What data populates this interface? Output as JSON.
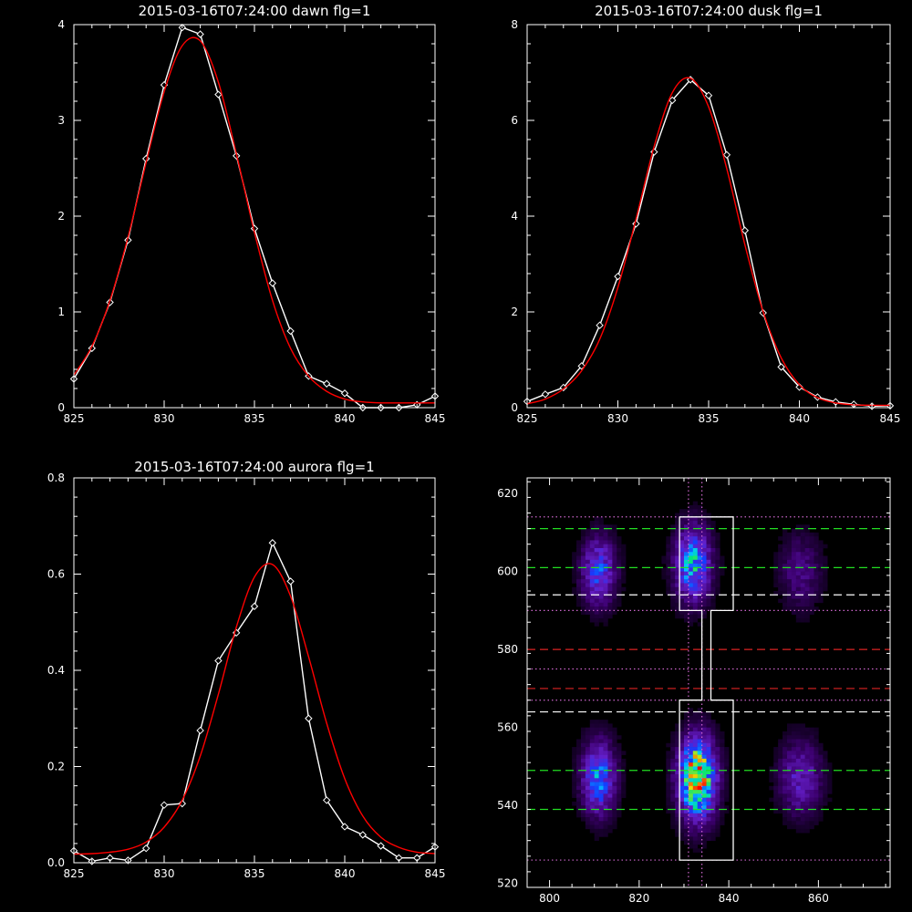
{
  "chart_data": [
    {
      "type": "line",
      "title": "2015-03-16T07:24:00 dawn flg=1",
      "xlim": [
        825,
        845
      ],
      "ylim": [
        0,
        4
      ],
      "xticks": [
        825,
        830,
        835,
        840,
        845
      ],
      "yticks": [
        0,
        1,
        2,
        3,
        4
      ],
      "series": [
        {
          "color": "#ffffff",
          "markers": "diamond",
          "x": [
            825,
            826,
            827,
            828,
            829,
            830,
            831,
            832,
            833,
            834,
            835,
            836,
            837,
            838,
            839,
            840,
            841,
            842,
            843,
            844,
            845
          ],
          "y": [
            0.3,
            0.62,
            1.1,
            1.75,
            2.6,
            3.37,
            3.97,
            3.9,
            3.27,
            2.63,
            1.87,
            1.3,
            0.8,
            0.33,
            0.25,
            0.15,
            0.0,
            0.0,
            0.0,
            0.03,
            0.12
          ]
        },
        {
          "color": "#ff0000",
          "markers": "none",
          "smooth": true,
          "x": [
            825,
            826,
            827,
            828,
            829,
            830,
            831,
            832,
            833,
            834,
            835,
            836,
            837,
            838,
            839,
            840,
            841,
            842,
            843,
            844,
            845
          ],
          "y": [
            0.34,
            0.64,
            1.12,
            1.78,
            2.56,
            3.3,
            3.78,
            3.83,
            3.4,
            2.65,
            1.83,
            1.12,
            0.62,
            0.33,
            0.17,
            0.09,
            0.06,
            0.05,
            0.05,
            0.05,
            0.05
          ]
        }
      ]
    },
    {
      "type": "line",
      "title": "2015-03-16T07:24:00 dusk flg=1",
      "xlim": [
        825,
        845
      ],
      "ylim": [
        0,
        8
      ],
      "xticks": [
        825,
        830,
        835,
        840,
        845
      ],
      "yticks": [
        0,
        2,
        4,
        6,
        8
      ],
      "series": [
        {
          "color": "#ffffff",
          "markers": "diamond",
          "x": [
            825,
            826,
            827,
            828,
            829,
            830,
            831,
            832,
            833,
            834,
            835,
            836,
            837,
            838,
            839,
            840,
            841,
            842,
            843,
            844,
            845
          ],
          "y": [
            0.13,
            0.28,
            0.42,
            0.87,
            1.72,
            2.74,
            3.84,
            5.34,
            6.42,
            6.85,
            6.52,
            5.28,
            3.7,
            1.98,
            0.85,
            0.43,
            0.22,
            0.12,
            0.07,
            0.03,
            0.04
          ]
        },
        {
          "color": "#ff0000",
          "markers": "none",
          "smooth": true,
          "x": [
            825,
            826,
            827,
            828,
            829,
            830,
            831,
            832,
            833,
            834,
            835,
            836,
            837,
            838,
            839,
            840,
            841,
            842,
            843,
            844,
            845
          ],
          "y": [
            0.08,
            0.18,
            0.39,
            0.77,
            1.43,
            2.51,
            3.94,
            5.46,
            6.58,
            6.88,
            6.28,
            4.99,
            3.4,
            2.01,
            1.04,
            0.48,
            0.21,
            0.1,
            0.06,
            0.05,
            0.05
          ]
        }
      ]
    },
    {
      "type": "line",
      "title": "2015-03-16T07:24:00 aurora flg=1",
      "xlim": [
        825,
        845
      ],
      "ylim": [
        0,
        0.8
      ],
      "xticks": [
        825,
        830,
        835,
        840,
        845
      ],
      "yticks": [
        0.0,
        0.2,
        0.4,
        0.6,
        0.8
      ],
      "ytick_labels": [
        "0.0",
        "0.2",
        "0.4",
        "0.6",
        "0.8"
      ],
      "series": [
        {
          "color": "#ffffff",
          "markers": "diamond",
          "x": [
            825,
            826,
            827,
            828,
            829,
            830,
            831,
            832,
            833,
            834,
            835,
            836,
            837,
            838,
            839,
            840,
            841,
            842,
            843,
            844,
            845
          ],
          "y": [
            0.025,
            0.003,
            0.01,
            0.005,
            0.03,
            0.12,
            0.123,
            0.275,
            0.42,
            0.478,
            0.533,
            0.665,
            0.585,
            0.3,
            0.13,
            0.075,
            0.058,
            0.035,
            0.01,
            0.01,
            0.033
          ]
        },
        {
          "color": "#ff0000",
          "markers": "none",
          "smooth": true,
          "x": [
            825,
            826,
            827,
            828,
            829,
            830,
            831,
            832,
            833,
            834,
            835,
            836,
            837,
            838,
            839,
            840,
            841,
            842,
            843,
            844,
            845
          ],
          "y": [
            0.018,
            0.019,
            0.022,
            0.028,
            0.043,
            0.074,
            0.13,
            0.222,
            0.35,
            0.49,
            0.594,
            0.62,
            0.554,
            0.428,
            0.29,
            0.175,
            0.097,
            0.053,
            0.032,
            0.022,
            0.019
          ]
        }
      ]
    },
    {
      "type": "heatmap",
      "title": "",
      "xlim": [
        795,
        876
      ],
      "ylim": [
        519,
        624
      ],
      "xticks": [
        800,
        820,
        840,
        860
      ],
      "yticks": [
        520,
        540,
        560,
        580,
        600,
        620
      ],
      "colormap": "rainbow-on-black",
      "blobs": [
        {
          "x": 811,
          "y": 600,
          "sx": 2.4,
          "sy": 5.5,
          "peak": 0.42
        },
        {
          "x": 811,
          "y": 547,
          "sx": 2.4,
          "sy": 6.0,
          "peak": 0.5
        },
        {
          "x": 832,
          "y": 602,
          "sx": 2.5,
          "sy": 6.0,
          "peak": 0.6
        },
        {
          "x": 833,
          "y": 547,
          "sx": 2.6,
          "sy": 6.5,
          "peak": 1.0
        },
        {
          "x": 856,
          "y": 600,
          "sx": 3.0,
          "sy": 6.0,
          "peak": 0.16
        },
        {
          "x": 856,
          "y": 547,
          "sx": 3.0,
          "sy": 6.0,
          "peak": 0.28
        }
      ],
      "hlines": [
        {
          "y": 611,
          "color": "#22dd22",
          "style": "dashed"
        },
        {
          "y": 601,
          "color": "#22dd22",
          "style": "dashed"
        },
        {
          "y": 594,
          "color": "#ffffff",
          "style": "dashed"
        },
        {
          "y": 580,
          "color": "#dd2222",
          "style": "dashed"
        },
        {
          "y": 570,
          "color": "#dd2222",
          "style": "dashed"
        },
        {
          "y": 564,
          "color": "#ffffff",
          "style": "dashed"
        },
        {
          "y": 549,
          "color": "#22dd22",
          "style": "dashed"
        },
        {
          "y": 539,
          "color": "#22dd22",
          "style": "dashed"
        },
        {
          "y": 614,
          "color": "#cc66cc",
          "style": "dotted"
        },
        {
          "y": 590,
          "color": "#cc66cc",
          "style": "dotted"
        },
        {
          "y": 575,
          "color": "#cc66cc",
          "style": "dotted"
        },
        {
          "y": 567,
          "color": "#cc66cc",
          "style": "dotted"
        },
        {
          "y": 526,
          "color": "#cc66cc",
          "style": "dotted"
        }
      ],
      "vlines": [
        {
          "x": 831,
          "color": "#cc66cc",
          "style": "dotted"
        },
        {
          "x": 834,
          "color": "#cc66cc",
          "style": "dotted"
        }
      ],
      "outline": [
        [
          829,
          614
        ],
        [
          841,
          614
        ],
        [
          841,
          590
        ],
        [
          836,
          590
        ],
        [
          836,
          567
        ],
        [
          841,
          567
        ],
        [
          841,
          526
        ],
        [
          829,
          526
        ],
        [
          829,
          567
        ],
        [
          834,
          567
        ],
        [
          834,
          590
        ],
        [
          829,
          590
        ],
        [
          829,
          614
        ]
      ]
    }
  ]
}
